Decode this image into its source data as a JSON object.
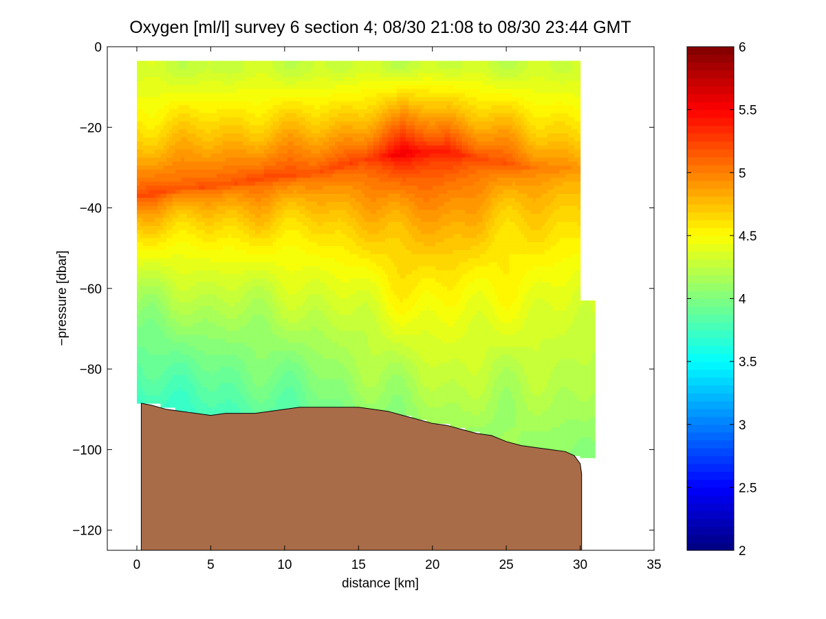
{
  "chart_data": {
    "type": "heatmap",
    "title": "Oxygen [ml/l] survey 6 section 4; 08/30 21:08 to 08/30 23:44 GMT",
    "xlabel": "distance [km]",
    "ylabel": "−pressure [dbar]",
    "xlim": [
      -2,
      35
    ],
    "ylim": [
      -125,
      0
    ],
    "xticks": [
      0,
      5,
      10,
      15,
      20,
      25,
      30,
      35
    ],
    "xtick_labels": [
      "0",
      "5",
      "10",
      "15",
      "20",
      "25",
      "30",
      "35"
    ],
    "yticks": [
      0,
      -20,
      -40,
      -60,
      -80,
      -100,
      -120
    ],
    "ytick_labels": [
      "0",
      "−20",
      "−40",
      "−60",
      "−80",
      "−100",
      "−120"
    ],
    "colorbar": {
      "colormap": "jet",
      "clim": [
        2,
        6
      ],
      "ticks": [
        2,
        2.5,
        3,
        3.5,
        4,
        4.5,
        5,
        5.5,
        6
      ],
      "tick_labels": [
        "2",
        "2.5",
        "3",
        "3.5",
        "4",
        "4.5",
        "5",
        "5.5",
        "6"
      ]
    },
    "field": {
      "x_range": [
        0,
        30
      ],
      "surface_y": -3.5,
      "profile_x": [
        0,
        3,
        6,
        9,
        12,
        15,
        18,
        21,
        24,
        27,
        30
      ],
      "oxygen_max_depth": [
        -37,
        -35,
        -34,
        -32,
        -31,
        -28,
        -26,
        -26,
        -28,
        -30,
        -30
      ],
      "oxygen_max_value": [
        5.2,
        5.2,
        5.2,
        5.25,
        5.2,
        5.3,
        5.55,
        5.45,
        5.2,
        5.05,
        4.95
      ],
      "surface_value": 4.3,
      "near_bottom_value": [
        3.7,
        3.75,
        3.8,
        3.85,
        3.95,
        4.05,
        4.1,
        4.15,
        4.1,
        4.1,
        4.05
      ]
    },
    "data_bottom_x": [
      0,
      1,
      2,
      3,
      4,
      5,
      6,
      7,
      8,
      9,
      10,
      11,
      12,
      13,
      14,
      15,
      16,
      17,
      18,
      19,
      20,
      21,
      22,
      23,
      24,
      25,
      26,
      27,
      28,
      29,
      30,
      30.8
    ],
    "data_bottom_y": [
      -87,
      -87,
      -88,
      -89,
      -90,
      -90.5,
      -90,
      -90,
      -90,
      -89.5,
      -89,
      -88.5,
      -88.5,
      -88.5,
      -88.5,
      -88.5,
      -89,
      -89.5,
      -90,
      -91,
      -92,
      -92.5,
      -93.5,
      -94.5,
      -95.5,
      -97,
      -98,
      -99,
      -100,
      -100.5,
      -100.5,
      -100.5
    ],
    "bathymetry": {
      "color": "#A96C48",
      "x": [
        0.3,
        1,
        2,
        3,
        4,
        5,
        6,
        7,
        8,
        9,
        10,
        11,
        12,
        13,
        14,
        15,
        16,
        17,
        18,
        19,
        20,
        21,
        22,
        23,
        24,
        25,
        26,
        27,
        28,
        29,
        29.6,
        30,
        30.1
      ],
      "y": [
        -88.5,
        -89,
        -90,
        -90.5,
        -91,
        -91.5,
        -91,
        -91,
        -91,
        -90.5,
        -90,
        -89.5,
        -89.5,
        -89.5,
        -89.5,
        -89.5,
        -90,
        -90.5,
        -91.5,
        -92.5,
        -93.5,
        -94,
        -95,
        -96,
        -96.5,
        -98,
        -99,
        -99.5,
        -100,
        -100.5,
        -101.5,
        -103.5,
        -106
      ]
    }
  }
}
